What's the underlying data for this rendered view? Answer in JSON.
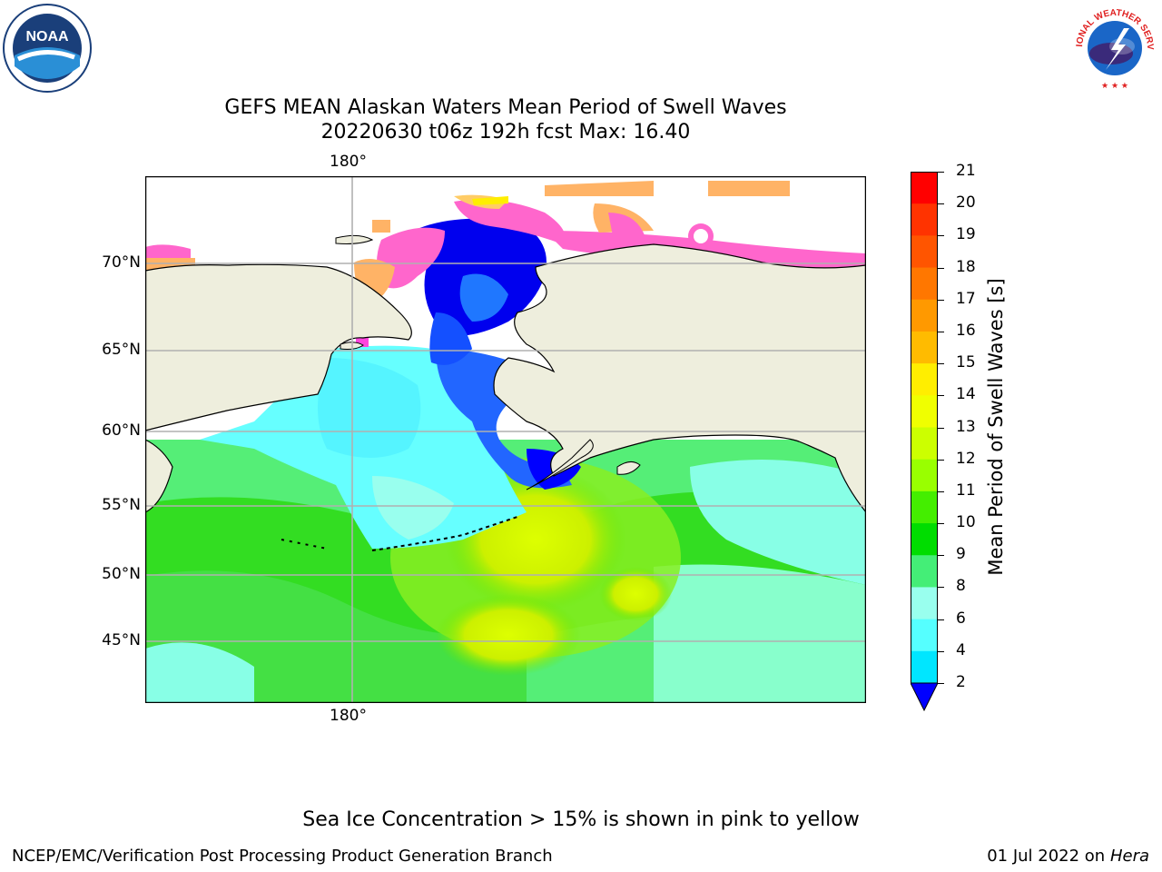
{
  "title": {
    "line1": "GEFS MEAN Alaskan Waters Mean Period of Swell Waves",
    "line2": "20220630 t06z 192h fcst   Max: 16.40"
  },
  "map": {
    "lat_labels": [
      "70°N",
      "65°N",
      "60°N",
      "55°N",
      "50°N",
      "45°N"
    ],
    "lon_label_top": "180°",
    "lon_label_bottom": "180°",
    "ocean_colors": {
      "ice": "#ff66cc",
      "ice_orange": "#ffb366",
      "land": "#eeeedd"
    }
  },
  "colorbar": {
    "title": "Mean Period of Swell Waves [s]",
    "ticks": [
      "21",
      "20",
      "19",
      "18",
      "17",
      "16",
      "15",
      "14",
      "13",
      "12",
      "11",
      "10",
      "9",
      "8",
      "6",
      "4",
      "2"
    ],
    "colors": [
      "#ff0000",
      "#ff3300",
      "#ff5500",
      "#ff7700",
      "#ff9900",
      "#ffbb00",
      "#ffee00",
      "#f0ff00",
      "#ccff00",
      "#99ff00",
      "#44ee00",
      "#00dd00",
      "#44ee77",
      "#99ffee",
      "#55ffff",
      "#00e6ff",
      "#00b7ff",
      "#0077ff",
      "#0000ff"
    ]
  },
  "note": "Sea Ice Concentration > 15% is shown in pink to yellow",
  "footer": {
    "left": "NCEP/EMC/Verification Post Processing Product Generation Branch",
    "date": "01 Jul 2022 on ",
    "host": "Hera"
  },
  "logos": {
    "noara_text": "NOAA",
    "nws_text": "NATIONAL WEATHER SERVICE"
  }
}
